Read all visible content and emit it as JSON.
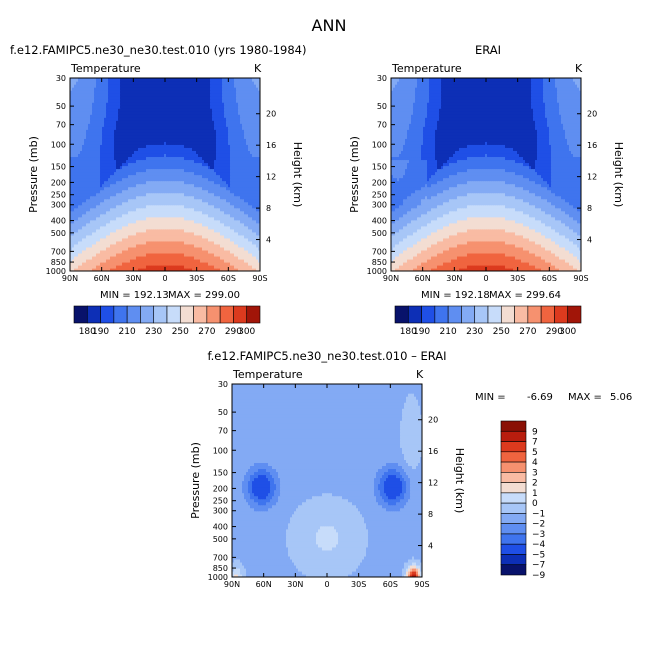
{
  "page_title": "ANN",
  "chart_data": [
    {
      "type": "heatmap",
      "title": "f.e12.FAMIPC5.ne30_ne30.test.010 (yrs 1980-1984)",
      "subtitle_left": "Temperature",
      "subtitle_right": "K",
      "xlabel": "",
      "ylabel": "Pressure (mb)",
      "y2label": "Height (km)",
      "x_tick_labels": [
        "90N",
        "60N",
        "30N",
        "0",
        "30S",
        "60S",
        "90S"
      ],
      "y_tick_labels": [
        "30",
        "50",
        "70",
        "100",
        "150",
        "200",
        "250",
        "300",
        "400",
        "500",
        "700",
        "850",
        "1000"
      ],
      "y2_tick_labels": [
        "20",
        "16",
        "12",
        "8",
        "4"
      ],
      "y_scale": "log",
      "ylim_mb": [
        1000,
        30
      ],
      "xlim_deg": [
        90,
        -90
      ],
      "min_label": "MIN = 192.13",
      "max_label": "MAX = 299.00",
      "min": 192.13,
      "max": 299.0,
      "levels": [
        180,
        190,
        200,
        210,
        220,
        230,
        240,
        250,
        260,
        270,
        280,
        290,
        300
      ],
      "colorbar_labels": [
        "180",
        "190",
        "210",
        "230",
        "250",
        "270",
        "290",
        "300"
      ],
      "colors": [
        "#08126b",
        "#0d2fb6",
        "#1f4fe6",
        "#3f74ee",
        "#5f8ef1",
        "#83aaf4",
        "#a7c6f7",
        "#c7dcfa",
        "#f3ddd2",
        "#f9bba3",
        "#f6916f",
        "#f0643f",
        "#dc3a1e",
        "#a11508"
      ]
    },
    {
      "type": "heatmap",
      "title": "ERAI",
      "subtitle_left": "Temperature",
      "subtitle_right": "K",
      "xlabel": "",
      "ylabel": "Pressure (mb)",
      "y2label": "Height (km)",
      "x_tick_labels": [
        "90N",
        "60N",
        "30N",
        "0",
        "30S",
        "60S",
        "90S"
      ],
      "y_tick_labels": [
        "30",
        "50",
        "70",
        "100",
        "150",
        "200",
        "250",
        "300",
        "400",
        "500",
        "700",
        "850",
        "1000"
      ],
      "y2_tick_labels": [
        "20",
        "16",
        "12",
        "8",
        "4"
      ],
      "y_scale": "log",
      "ylim_mb": [
        1000,
        30
      ],
      "xlim_deg": [
        90,
        -90
      ],
      "min_label": "MIN = 192.18",
      "max_label": "MAX = 299.64",
      "min": 192.18,
      "max": 299.64,
      "levels": [
        180,
        190,
        200,
        210,
        220,
        230,
        240,
        250,
        260,
        270,
        280,
        290,
        300
      ],
      "colorbar_labels": [
        "180",
        "190",
        "210",
        "230",
        "250",
        "270",
        "290",
        "300"
      ],
      "colors": [
        "#08126b",
        "#0d2fb6",
        "#1f4fe6",
        "#3f74ee",
        "#5f8ef1",
        "#83aaf4",
        "#a7c6f7",
        "#c7dcfa",
        "#f3ddd2",
        "#f9bba3",
        "#f6916f",
        "#f0643f",
        "#dc3a1e",
        "#a11508"
      ]
    },
    {
      "type": "heatmap",
      "title": "f.e12.FAMIPC5.ne30_ne30.test.010 – ERAI",
      "subtitle_left": "Temperature",
      "subtitle_right": "K",
      "xlabel": "",
      "ylabel": "Pressure (mb)",
      "y2label": "Height (km)",
      "x_tick_labels": [
        "90N",
        "60N",
        "30N",
        "0",
        "30S",
        "60S",
        "90S"
      ],
      "y_tick_labels": [
        "30",
        "50",
        "70",
        "100",
        "150",
        "200",
        "250",
        "300",
        "400",
        "500",
        "700",
        "850",
        "1000"
      ],
      "y2_tick_labels": [
        "20",
        "16",
        "12",
        "8",
        "4"
      ],
      "y_scale": "log",
      "ylim_mb": [
        1000,
        30
      ],
      "xlim_deg": [
        90,
        -90
      ],
      "min_label": "MIN =",
      "min_value": "-6.69",
      "max_label": "MAX =",
      "max_value": "5.06",
      "min": -6.69,
      "max": 5.06,
      "levels": [
        -9,
        -7,
        -5,
        -4,
        -3,
        -2,
        -1,
        0,
        1,
        2,
        3,
        4,
        5,
        7,
        9
      ],
      "colorbar_labels": [
        "9",
        "7",
        "5",
        "4",
        "3",
        "2",
        "1",
        "0",
        "−1",
        "−2",
        "−3",
        "−4",
        "−5",
        "−7",
        "−9"
      ],
      "colors": [
        "#08126b",
        "#0d2fb6",
        "#1f4fe6",
        "#3f74ee",
        "#5f8ef1",
        "#83aaf4",
        "#a7c6f7",
        "#c7dcfa",
        "#f3ddd2",
        "#f9bba3",
        "#f6916f",
        "#f0643f",
        "#dc3a1e",
        "#b81d0e",
        "#8a1005"
      ]
    }
  ]
}
